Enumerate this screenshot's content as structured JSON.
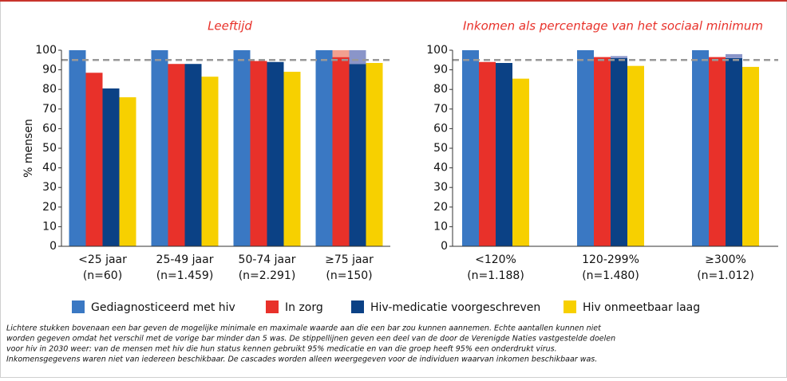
{
  "legend": [
    {
      "name": "Gediagnosticeerd met hiv",
      "color": "#3a78c3",
      "light_color": "#8fb0de"
    },
    {
      "name": "In zorg",
      "color": "#e8312a",
      "light_color": "#f2a08f"
    },
    {
      "name": "Hiv-medicatie voorgeschreven",
      "color": "#0b4185",
      "light_color": "#8a95c9"
    },
    {
      "name": "Hiv onmeetbaar laag",
      "color": "#f7d000",
      "light_color": "#fbe680"
    }
  ],
  "chart_data": [
    {
      "type": "bar",
      "title": "Leeftijd",
      "ylabel": "% mensen",
      "categories": [
        "<25 jaar",
        "25-49 jaar",
        "50-74 jaar",
        "≥75 jaar"
      ],
      "counts": [
        "(n=60)",
        "(n=1.459)",
        "(n=2.291)",
        "(n=150)"
      ],
      "series": [
        {
          "values": [
            100,
            100,
            100,
            100
          ],
          "upper": [
            null,
            null,
            null,
            null
          ]
        },
        {
          "values": [
            88.5,
            93,
            94.5,
            96.5
          ],
          "upper": [
            null,
            null,
            null,
            100
          ]
        },
        {
          "values": [
            80.5,
            93,
            94,
            93
          ],
          "upper": [
            null,
            null,
            null,
            100
          ]
        },
        {
          "values": [
            76,
            86.5,
            89,
            93.5
          ],
          "upper": [
            null,
            null,
            null,
            null
          ]
        }
      ],
      "target": 95,
      "ylim": [
        0,
        100
      ],
      "yticks": [
        0,
        10,
        20,
        30,
        40,
        50,
        60,
        70,
        80,
        90,
        100
      ]
    },
    {
      "type": "bar",
      "title": "Inkomen als percentage van het sociaal minimum",
      "categories": [
        "<120%",
        "120-299%",
        "≥300%"
      ],
      "counts": [
        "(n=1.188)",
        "(n=1.480)",
        "(n=1.012)"
      ],
      "series": [
        {
          "values": [
            100,
            100,
            100
          ],
          "upper": [
            null,
            null,
            null
          ]
        },
        {
          "values": [
            94,
            96.5,
            96.5
          ],
          "upper": [
            null,
            null,
            null
          ]
        },
        {
          "values": [
            93.5,
            96,
            96
          ],
          "upper": [
            null,
            97,
            98
          ]
        },
        {
          "values": [
            85.5,
            92,
            91.5
          ],
          "upper": [
            null,
            null,
            null
          ]
        }
      ],
      "target": 95,
      "ylim": [
        0,
        100
      ],
      "yticks": [
        0,
        10,
        20,
        30,
        40,
        50,
        60,
        70,
        80,
        90,
        100
      ]
    }
  ],
  "footnote": [
    "Lichtere stukken bovenaan een bar geven de mogelijke minimale en maximale waarde aan die een bar zou kunnen aannemen. Echte aantallen kunnen niet",
    "worden gegeven omdat het verschil met de vorige bar minder dan 5 was. De stippellijnen geven een deel van de door de Verenigde Naties vastgestelde doelen",
    "voor hiv in 2030 weer: van de mensen met hiv die hun status kennen gebruikt 95% medicatie en van die groep heeft 95% een onderdrukt virus.",
    "Inkomensgegevens waren niet van iedereen beschikbaar. De cascades worden alleen weergegeven voor de individuen waarvan inkomen beschikbaar was."
  ]
}
